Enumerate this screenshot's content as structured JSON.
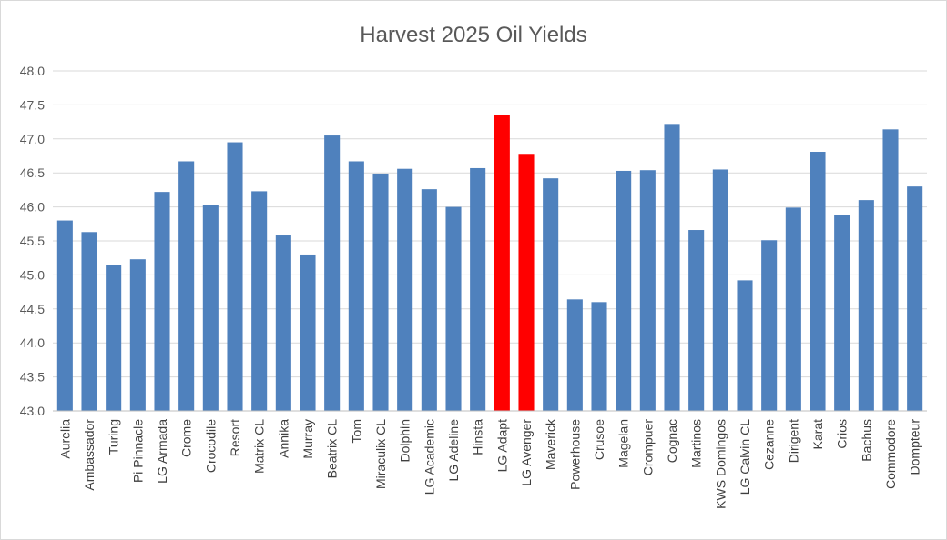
{
  "chart_data": {
    "type": "bar",
    "title": "Harvest 2025 Oil Yields",
    "xlabel": "",
    "ylabel": "",
    "ylim": [
      43.0,
      48.0
    ],
    "ytick_step": 0.5,
    "yticks": [
      "43.0",
      "43.5",
      "44.0",
      "44.5",
      "45.0",
      "45.5",
      "46.0",
      "46.5",
      "47.0",
      "47.5",
      "48.0"
    ],
    "grid": true,
    "legend": "none",
    "colors": {
      "default_bar": "#4f81bd",
      "highlight_bar": "#ff0000"
    },
    "categories": [
      "Aurelia",
      "Ambassador",
      "Turing",
      "Pi Pinnacle",
      "LG Armada",
      "Crome",
      "Crocodile",
      "Resort",
      "Matrix CL",
      "Annika",
      "Murray",
      "Beatrix CL",
      "Tom",
      "Miraculix CL",
      "Dolphin",
      "LG Academic",
      "LG Adeline",
      "Hinsta",
      "LG Adapt",
      "LG Avenger",
      "Maverick",
      "Powerhouse",
      "Crusoe",
      "Magelan",
      "Crompuer",
      "Cognac",
      "Martinos",
      "KWS Domingos",
      "LG Calvin CL",
      "Cezanne",
      "Dirigent",
      "Karat",
      "Crios",
      "Bachus",
      "Commodore",
      "Dompteur"
    ],
    "values": [
      45.8,
      45.63,
      45.15,
      45.23,
      46.22,
      46.67,
      46.03,
      46.95,
      46.23,
      45.58,
      45.3,
      47.05,
      46.67,
      46.49,
      46.56,
      46.26,
      46.0,
      46.57,
      47.35,
      46.78,
      46.42,
      44.64,
      44.6,
      46.53,
      46.54,
      47.22,
      45.66,
      46.55,
      44.92,
      45.51,
      45.99,
      46.81,
      45.88,
      46.1,
      47.14,
      46.3
    ],
    "highlighted": [
      "LG Adapt",
      "LG Avenger"
    ]
  }
}
